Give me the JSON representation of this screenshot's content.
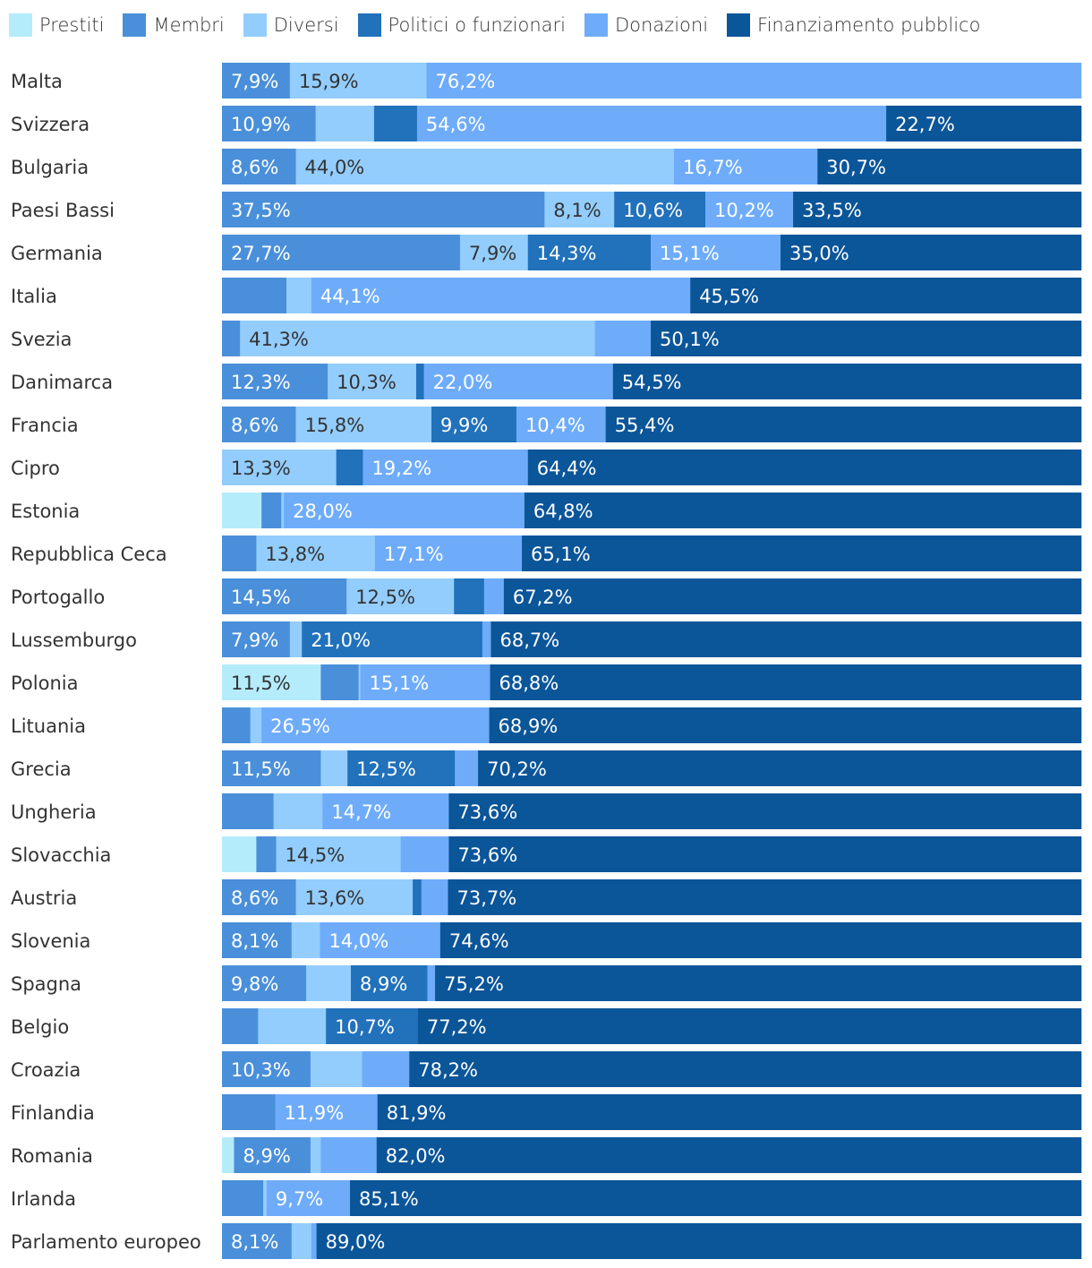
{
  "chart_data": {
    "type": "bar",
    "orientation": "horizontal",
    "stacked": "percent",
    "xlim": [
      0,
      100
    ],
    "legend_position": "top",
    "series": [
      {
        "name": "Prestiti",
        "color": "#b5ecfb",
        "label_color": "#333333"
      },
      {
        "name": "Membri",
        "color": "#4a8fd9",
        "label_color": "#ffffff"
      },
      {
        "name": "Diversi",
        "color": "#93cdfd",
        "label_color": "#333333"
      },
      {
        "name": "Politici o funzionari",
        "color": "#2171bb",
        "label_color": "#ffffff"
      },
      {
        "name": "Donazioni",
        "color": "#6eacfa",
        "label_color": "#ffffff"
      },
      {
        "name": "Finanziamento pubblico",
        "color": "#0b5599",
        "label_color": "#ffffff"
      }
    ],
    "rows": [
      {
        "category": "Malta",
        "values": [
          0,
          7.9,
          15.9,
          0,
          76.2,
          0
        ],
        "labels": [
          "",
          "7,9%",
          "15,9%",
          "",
          "76,2%",
          ""
        ]
      },
      {
        "category": "Svizzera",
        "values": [
          0,
          10.9,
          6.8,
          5.0,
          54.6,
          22.7
        ],
        "labels": [
          "",
          "10,9%",
          "",
          "",
          "54,6%",
          "22,7%"
        ]
      },
      {
        "category": "Bulgaria",
        "values": [
          0,
          8.6,
          44.0,
          0,
          16.7,
          30.7
        ],
        "labels": [
          "",
          "8,6%",
          "44,0%",
          "",
          "16,7%",
          "30,7%"
        ]
      },
      {
        "category": "Paesi Bassi",
        "values": [
          0,
          37.5,
          8.1,
          10.6,
          10.2,
          33.5
        ],
        "labels": [
          "",
          "37,5%",
          "8,1%",
          "10,6%",
          "10,2%",
          "33,5%"
        ]
      },
      {
        "category": "Germania",
        "values": [
          0,
          27.7,
          7.9,
          14.3,
          15.1,
          35.0
        ],
        "labels": [
          "",
          "27,7%",
          "7,9%",
          "14,3%",
          "15,1%",
          "35,0%"
        ]
      },
      {
        "category": "Italia",
        "values": [
          0,
          7.5,
          2.9,
          0,
          44.1,
          45.5
        ],
        "labels": [
          "",
          "",
          "",
          "",
          "44,1%",
          "45,5%"
        ]
      },
      {
        "category": "Svezia",
        "values": [
          0,
          2.1,
          41.3,
          0,
          6.5,
          50.1
        ],
        "labels": [
          "",
          "",
          "41,3%",
          "",
          "",
          "50,1%"
        ]
      },
      {
        "category": "Danimarca",
        "values": [
          0,
          12.3,
          10.3,
          0.9,
          22.0,
          54.5
        ],
        "labels": [
          "",
          "12,3%",
          "10,3%",
          "",
          "22,0%",
          "54,5%"
        ]
      },
      {
        "category": "Francia",
        "values": [
          0,
          8.6,
          15.8,
          9.9,
          10.4,
          55.4
        ],
        "labels": [
          "",
          "8,6%",
          "15,8%",
          "9,9%",
          "10,4%",
          "55,4%"
        ]
      },
      {
        "category": "Cipro",
        "values": [
          0,
          0,
          13.3,
          3.1,
          19.2,
          64.4
        ],
        "labels": [
          "",
          "",
          "13,3%",
          "",
          "19,2%",
          "64,4%"
        ]
      },
      {
        "category": "Estonia",
        "values": [
          4.6,
          2.3,
          0.3,
          0,
          28.0,
          64.8
        ],
        "labels": [
          "",
          "",
          "",
          "",
          "28,0%",
          "64,8%"
        ]
      },
      {
        "category": "Repubblica Ceca",
        "values": [
          0,
          4.0,
          13.8,
          0,
          17.1,
          65.1
        ],
        "labels": [
          "",
          "",
          "13,8%",
          "",
          "17,1%",
          "65,1%"
        ]
      },
      {
        "category": "Portogallo",
        "values": [
          0,
          14.5,
          12.5,
          3.5,
          2.3,
          67.2
        ],
        "labels": [
          "",
          "14,5%",
          "12,5%",
          "",
          "",
          "67,2%"
        ]
      },
      {
        "category": "Lussemburgo",
        "values": [
          0,
          7.9,
          1.4,
          21.0,
          1.0,
          68.7
        ],
        "labels": [
          "",
          "7,9%",
          "",
          "21,0%",
          "",
          "68,7%"
        ]
      },
      {
        "category": "Polonia",
        "values": [
          11.5,
          4.4,
          0.2,
          0,
          15.1,
          68.8
        ],
        "labels": [
          "11,5%",
          "",
          "",
          "",
          "15,1%",
          "68,8%"
        ]
      },
      {
        "category": "Lituania",
        "values": [
          0,
          3.3,
          1.3,
          0,
          26.5,
          68.9
        ],
        "labels": [
          "",
          "",
          "",
          "",
          "26,5%",
          "68,9%"
        ]
      },
      {
        "category": "Grecia",
        "values": [
          0,
          11.5,
          3.1,
          12.5,
          2.7,
          70.2
        ],
        "labels": [
          "",
          "11,5%",
          "",
          "12,5%",
          "",
          "70,2%"
        ]
      },
      {
        "category": "Ungheria",
        "values": [
          0,
          6.0,
          5.7,
          0,
          14.7,
          73.6
        ],
        "labels": [
          "",
          "",
          "",
          "",
          "14,7%",
          "73,6%"
        ]
      },
      {
        "category": "Slovacchia",
        "values": [
          4.0,
          2.3,
          14.5,
          0,
          5.6,
          73.6
        ],
        "labels": [
          "",
          "",
          "14,5%",
          "",
          "",
          "73,6%"
        ]
      },
      {
        "category": "Austria",
        "values": [
          0,
          8.6,
          13.6,
          1.0,
          3.1,
          73.7
        ],
        "labels": [
          "",
          "8,6%",
          "13,6%",
          "",
          "",
          "73,7%"
        ]
      },
      {
        "category": "Slovenia",
        "values": [
          0,
          8.1,
          3.3,
          0,
          14.0,
          74.6
        ],
        "labels": [
          "",
          "8,1%",
          "",
          "",
          "14,0%",
          "74,6%"
        ]
      },
      {
        "category": "Spagna",
        "values": [
          0,
          9.8,
          5.2,
          8.9,
          0.9,
          75.2
        ],
        "labels": [
          "",
          "9,8%",
          "",
          "8,9%",
          "",
          "75,2%"
        ]
      },
      {
        "category": "Belgio",
        "values": [
          0,
          4.2,
          7.9,
          10.7,
          0,
          77.2
        ],
        "labels": [
          "",
          "",
          "",
          "10,7%",
          "",
          "77,2%"
        ]
      },
      {
        "category": "Croazia",
        "values": [
          0,
          10.3,
          6.0,
          0,
          5.5,
          78.2
        ],
        "labels": [
          "",
          "10,3%",
          "",
          "",
          "",
          "78,2%"
        ]
      },
      {
        "category": "Finlandia",
        "values": [
          0,
          6.2,
          0,
          0,
          11.9,
          81.9
        ],
        "labels": [
          "",
          "",
          "",
          "",
          "11,9%",
          "81,9%"
        ]
      },
      {
        "category": "Romania",
        "values": [
          1.4,
          8.9,
          1.2,
          0,
          6.5,
          82.0
        ],
        "labels": [
          "",
          "8,9%",
          "",
          "",
          "",
          "82,0%"
        ]
      },
      {
        "category": "Irlanda",
        "values": [
          0,
          4.8,
          0.4,
          0,
          9.7,
          85.1
        ],
        "labels": [
          "",
          "",
          "",
          "",
          "9,7%",
          "85,1%"
        ]
      },
      {
        "category": "Parlamento europeo",
        "values": [
          0,
          8.1,
          2.3,
          0,
          0.6,
          89.0
        ],
        "labels": [
          "",
          "8,1%",
          "",
          "",
          "",
          "89,0%"
        ]
      }
    ]
  }
}
